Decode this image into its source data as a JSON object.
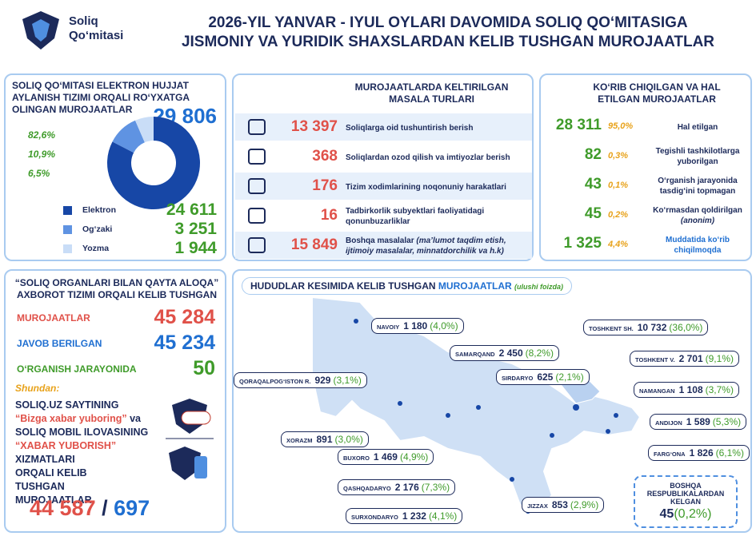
{
  "header": {
    "logo_line1": "Soliq",
    "logo_line2": "Qo‘mitasi",
    "title_line1": "2026-YIL YANVAR - IYUL OYLARI DAVOMIDA SOLIQ QO‘MITASIGA",
    "title_line2": "JISMONIY VA YURIDIK SHAXSLARDAN KELIB TUSHGAN MUROJAATLAR"
  },
  "electronic": {
    "title": "SOLIQ QO‘MITASI ELEKTRON HUJJAT AYLANISH TIZIMI ORQALI RO‘YXATGA OLINGAN MUROJAATLAR",
    "total": "29 806",
    "shares": [
      {
        "value": 82.6,
        "label": "82,6%"
      },
      {
        "value": 10.9,
        "label": "10,9%"
      },
      {
        "value": 6.5,
        "label": "6,5%"
      }
    ],
    "rows": [
      {
        "name": "Elektron",
        "value": "24 611",
        "color": "#1747a6"
      },
      {
        "name": "Og‘zaki",
        "value": "3 251",
        "color": "#5f93e2"
      },
      {
        "name": "Yozma",
        "value": "1 944",
        "color": "#c9ddf7"
      }
    ]
  },
  "issues": {
    "title": "MUROJAATLARDA KELTIRILGAN MASALA TURLARI",
    "rows": [
      {
        "value": "13 397",
        "text": "Soliqlarga oid tushuntirish berish"
      },
      {
        "value": "368",
        "text": "Soliqlardan ozod qilish va imtiyozlar berish"
      },
      {
        "value": "176",
        "text": "Tizim xodimlarining noqonuniy harakatlari"
      },
      {
        "value": "16",
        "text": "Tadbirkorlik subyektlari faoliyatidagi qonunbuzarliklar"
      },
      {
        "value": "15 849",
        "text": "Boshqa masalalar",
        "note": "(ma’lumot taqdim etish, ijtimoiy masalalar, minnatdorchilik va h.k)"
      }
    ]
  },
  "resolved": {
    "title": "KO‘RIB CHIQILGAN VA HAL ETILGAN MUROJAATLAR",
    "rows": [
      {
        "value": "28 311",
        "share": "95,0%",
        "text": "Hal etilgan"
      },
      {
        "value": "82",
        "share": "0,3%",
        "text": "Tegishli tashkilotlarga yuborilgan"
      },
      {
        "value": "43",
        "share": "0,1%",
        "text": "O‘rganish jarayonida tasdig‘ini topmagan"
      },
      {
        "value": "45",
        "share": "0,2%",
        "text": "Ko‘rmasdan qoldirilgan",
        "note": "(anonim)"
      },
      {
        "value": "1 325",
        "share": "4,4%",
        "text": "Muddatida ko‘rib chiqilmoqda"
      }
    ]
  },
  "feedback": {
    "title": "“SOLIQ ORGANLARI BILAN QAYTA ALOQA” AXBOROT TIZIMI ORQALI KELIB TUSHGAN",
    "rows": [
      {
        "name": "MUROJAATLAR",
        "value": "45 284"
      },
      {
        "name": "JAVOB BERILGAN",
        "value": "45 234"
      },
      {
        "name": "O‘RGANISH JARAYONIDA",
        "value": "50"
      }
    ],
    "shundan": "Shundan:",
    "line1": "SOLIQ.UZ SAYTINING",
    "quote1": "“Bizga xabar yuboring”",
    "and": "va",
    "line2": "SOLIQ MOBIL ILOVASINING",
    "quote2": "“XABAR YUBORISH”",
    "line3": "XIZMATLARI ORQALI KELIB TUSHGAN MUROJAATLAR",
    "total_site": "44 587",
    "separator": "/",
    "total_app": "697"
  },
  "regions": {
    "title": "HUDUDLAR KESIMIDA KELIB TUSHGAN",
    "title_highlight": "MUROJAATLAR",
    "title_note": "(ulushi foizda)",
    "items": [
      {
        "name": "NAVOIY",
        "value": "1 180",
        "share": "(4,0%)"
      },
      {
        "name": "SAMARQAND",
        "value": "2 450",
        "share": "(8,2%)"
      },
      {
        "name": "QORAQALPOG‘ISTON R.",
        "value": "929",
        "share": "(3,1%)"
      },
      {
        "name": "SIRDARYO",
        "value": "625",
        "share": "(2,1%)"
      },
      {
        "name": "TOSHKENT SH.",
        "value": "10 732",
        "share": "(36,0%)"
      },
      {
        "name": "TOSHKENT V.",
        "value": "2 701",
        "share": "(9,1%)"
      },
      {
        "name": "NAMANGAN",
        "value": "1 108",
        "share": "(3,7%)"
      },
      {
        "name": "ANDIJON",
        "value": "1 589",
        "share": "(5,3%)"
      },
      {
        "name": "FARG‘ONA",
        "value": "1 826",
        "share": "(6,1%)"
      },
      {
        "name": "XORAZM",
        "value": "891",
        "share": "(3,0%)"
      },
      {
        "name": "BUXORO",
        "value": "1 469",
        "share": "(4,9%)"
      },
      {
        "name": "QASHQADARYO",
        "value": "2 176",
        "share": "(7,3%)"
      },
      {
        "name": "SURXONDARYO",
        "value": "1 232",
        "share": "(4,1%)"
      },
      {
        "name": "JIZZAX",
        "value": "853",
        "share": "(2,9%)"
      }
    ],
    "other": {
      "name": "BOSHQA RESPUBLIKALARDAN KELGAN",
      "value": "45",
      "share": "(0,2%)"
    }
  }
}
